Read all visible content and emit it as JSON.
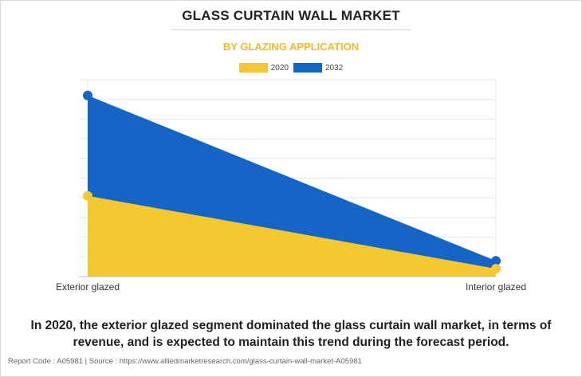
{
  "title": "GLASS CURTAIN WALL MARKET",
  "subtitle": "BY GLAZING APPLICATION",
  "legend": [
    {
      "label": "2020",
      "color": "#f4c82f"
    },
    {
      "label": "2032",
      "color": "#1565c6"
    }
  ],
  "chart_data": {
    "type": "area",
    "categories": [
      "Exterior glazed",
      "Interior glazed"
    ],
    "series": [
      {
        "name": "2020",
        "values": [
          41,
          4
        ],
        "color": "#f4c82f"
      },
      {
        "name": "2032",
        "values": [
          92,
          8
        ],
        "color": "#1565c6"
      }
    ],
    "ylim": [
      0,
      100
    ],
    "grid": true,
    "legend_position": "top-center"
  },
  "caption": "In 2020, the exterior glazed segment dominated the glass curtain wall market, in terms of revenue, and is expected to maintain this trend during the forecast period.",
  "footer": "Report Code : A05981  |  Source : https://www.alliedmarketresearch.com/glass-curtain-wall-market-A05981"
}
